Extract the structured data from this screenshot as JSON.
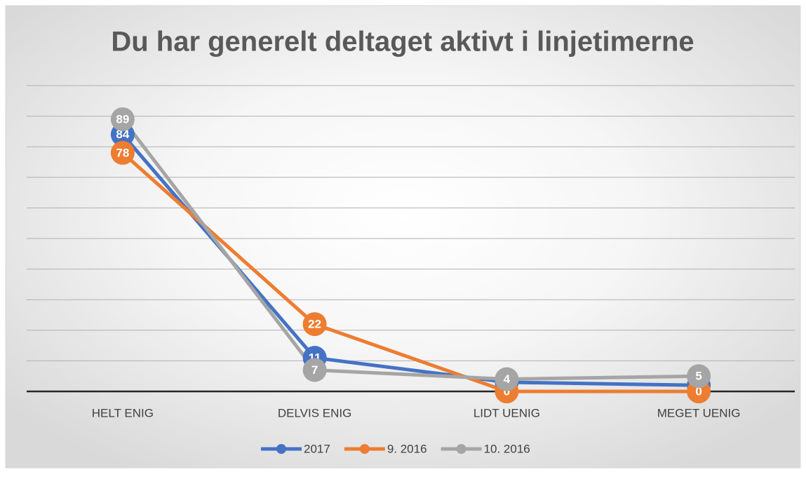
{
  "chart_data": {
    "type": "line",
    "title": "Du har generelt deltaget aktivt i linjetimerne",
    "categories": [
      "HELT ENIG",
      "DELVIS ENIG",
      "LIDT UENIG",
      "MEGET UENIG"
    ],
    "series": [
      {
        "name": "2017",
        "color": "#4472c4",
        "values": [
          84,
          11,
          3,
          2
        ]
      },
      {
        "name": "9. 2016",
        "color": "#ed7d31",
        "values": [
          78,
          22,
          0,
          0
        ]
      },
      {
        "name": "10. 2016",
        "color": "#a5a5a5",
        "values": [
          89,
          7,
          4,
          5
        ]
      }
    ],
    "ylim": [
      0,
      100
    ],
    "yticks": [
      0,
      10,
      20,
      30,
      40,
      50,
      60,
      70,
      80,
      90,
      100
    ],
    "grid": true,
    "legend": "bottom"
  }
}
